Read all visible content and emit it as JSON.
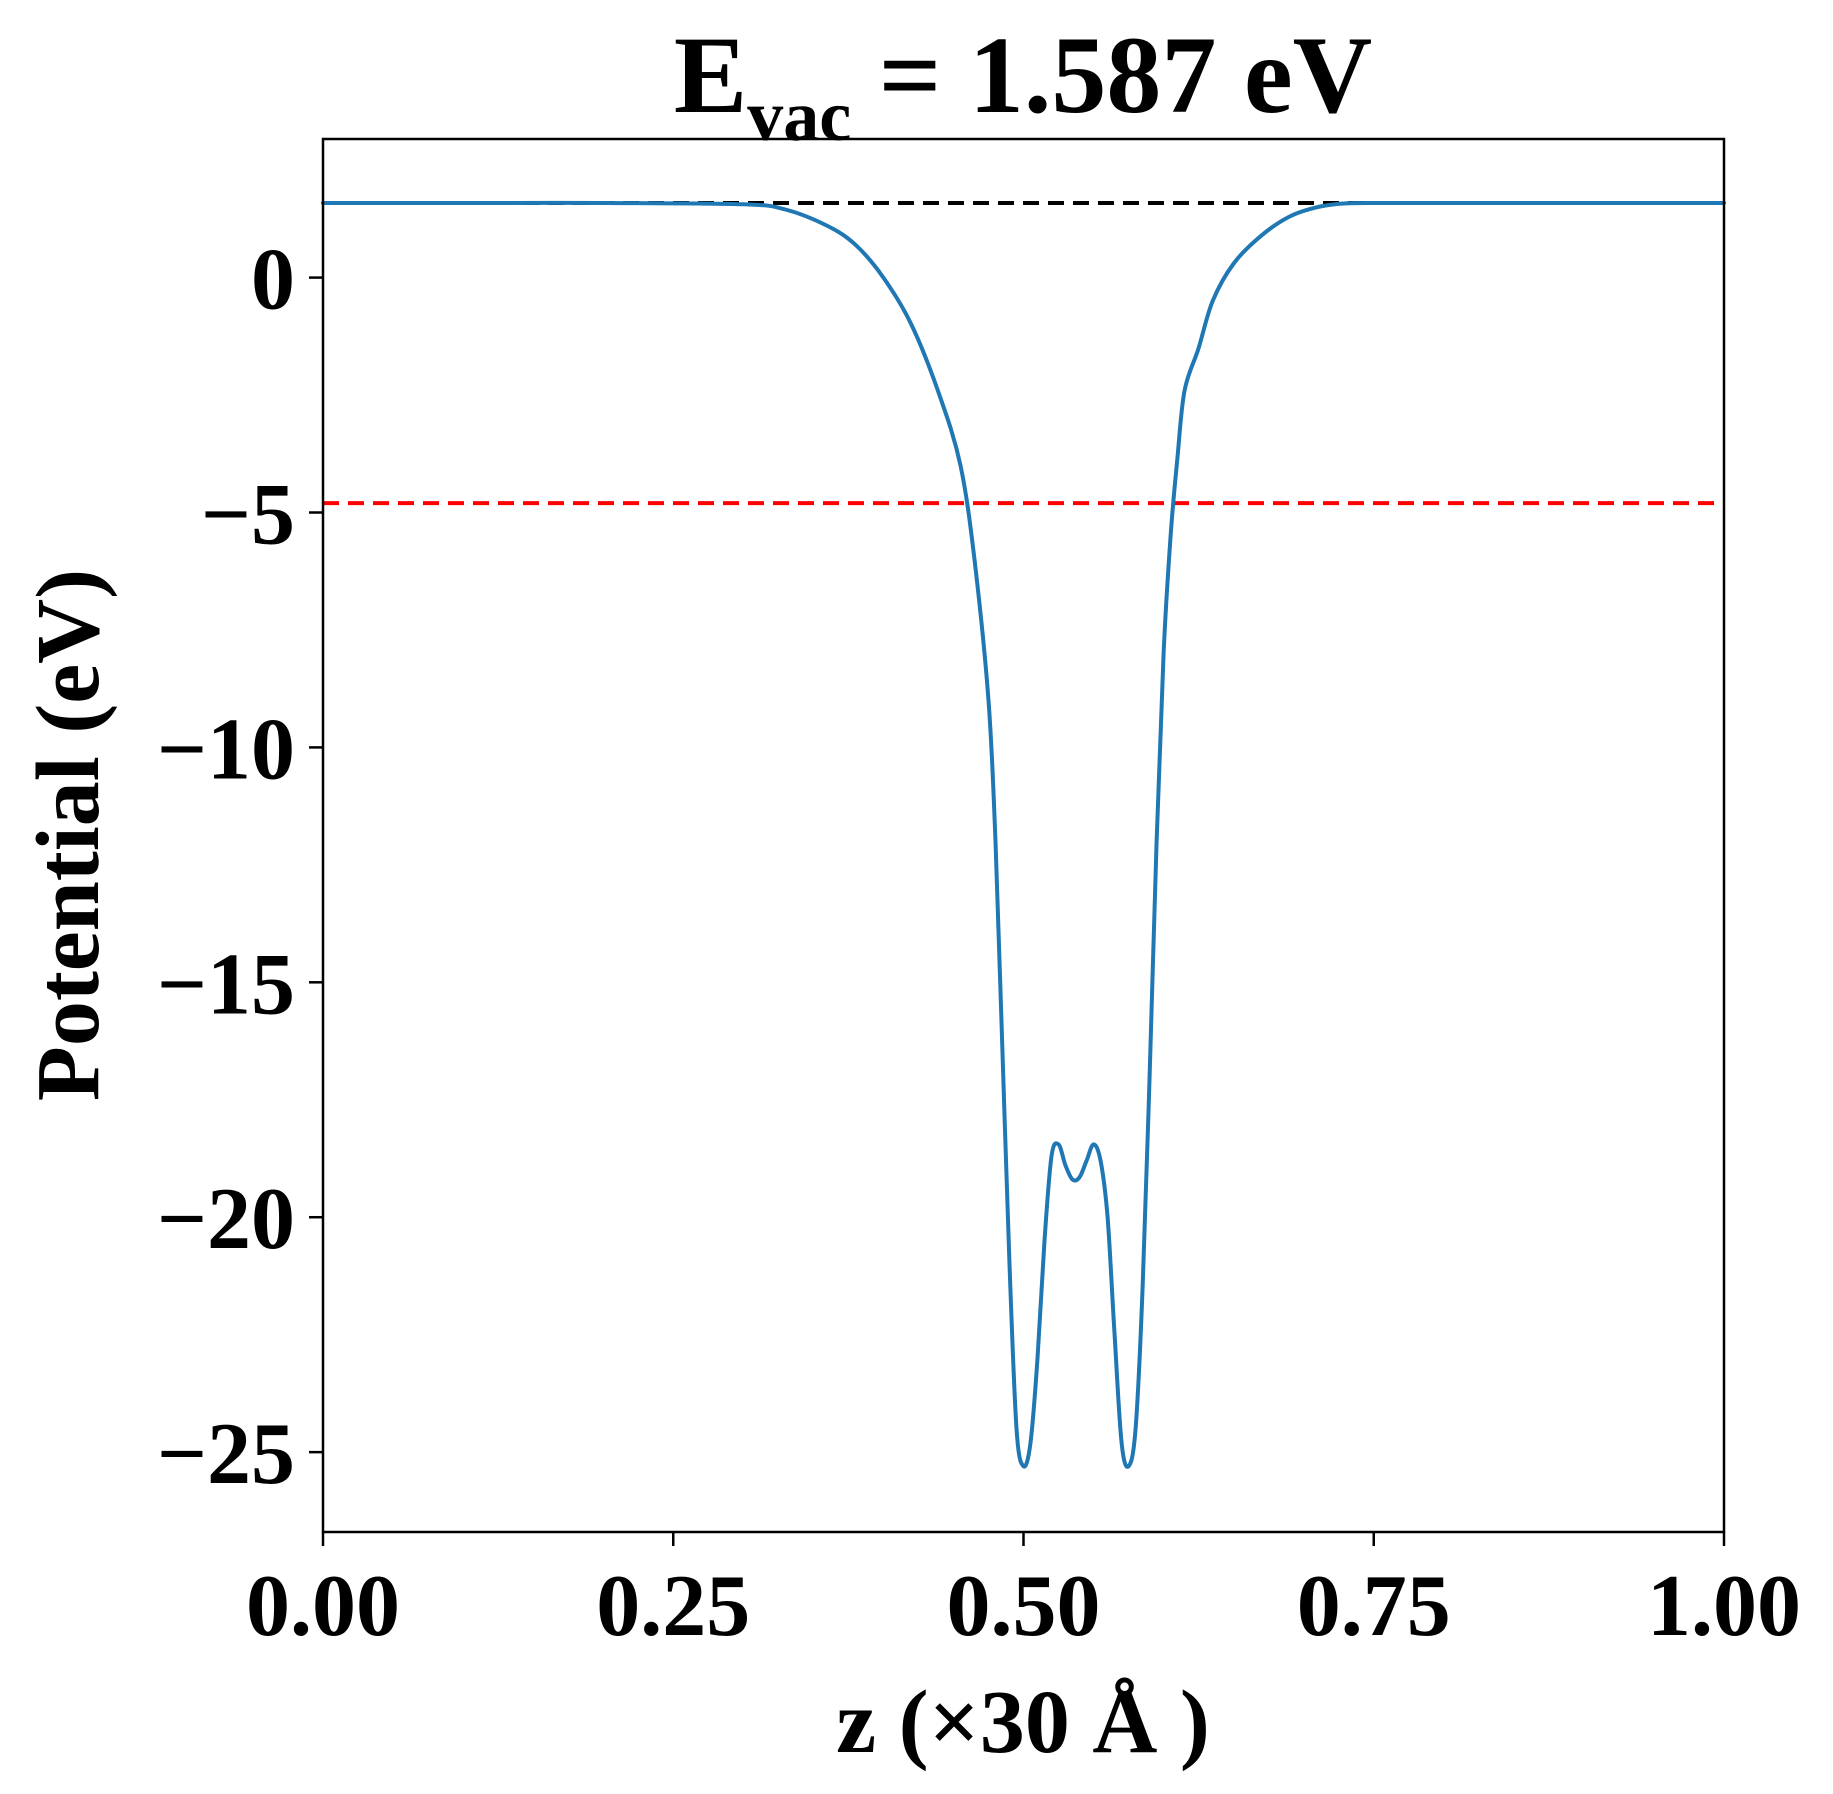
{
  "chart_data": {
    "type": "line",
    "title": {
      "main": "E",
      "subscript": "vac",
      "rest": " = 1.587 eV"
    },
    "xlabel": "z (×30 Å )",
    "ylabel": "Potential (eV)",
    "xlim": [
      0,
      1
    ],
    "ylim": [
      -26.7,
      2.95
    ],
    "xticks": [
      {
        "value": 0.0,
        "label": "0.00"
      },
      {
        "value": 0.25,
        "label": "0.25"
      },
      {
        "value": 0.5,
        "label": "0.50"
      },
      {
        "value": 0.75,
        "label": "0.75"
      },
      {
        "value": 1.0,
        "label": "1.00"
      }
    ],
    "yticks": [
      {
        "value": 0,
        "label": "0"
      },
      {
        "value": -5,
        "label": "−5"
      },
      {
        "value": -10,
        "label": "−10"
      },
      {
        "value": -15,
        "label": "−15"
      },
      {
        "value": -20,
        "label": "−20"
      },
      {
        "value": -25,
        "label": "−25"
      }
    ],
    "grid": false,
    "reference_lines": [
      {
        "y": 1.587,
        "color": "#000000",
        "style": "dashed"
      },
      {
        "y": -4.8,
        "color": "#ff0000",
        "style": "dashed"
      }
    ],
    "series": [
      {
        "color": "#1f77b4",
        "x": [
          0.0,
          0.1,
          0.2,
          0.3,
          0.33,
          0.36,
          0.38,
          0.4,
          0.42,
          0.44,
          0.455,
          0.465,
          0.475,
          0.48,
          0.485,
          0.49,
          0.495,
          0.5,
          0.505,
          0.51,
          0.515,
          0.52,
          0.525,
          0.53,
          0.535,
          0.54,
          0.545,
          0.55,
          0.555,
          0.56,
          0.565,
          0.57,
          0.575,
          0.58,
          0.585,
          0.59,
          0.595,
          0.6,
          0.605,
          0.61,
          0.615,
          0.625,
          0.635,
          0.65,
          0.67,
          0.69,
          0.71,
          0.73,
          0.76,
          0.8,
          0.9,
          1.0
        ],
        "values": [
          1.587,
          1.587,
          1.587,
          1.56,
          1.45,
          1.1,
          0.7,
          0.0,
          -1.0,
          -2.5,
          -4.0,
          -6.0,
          -9.0,
          -12.0,
          -16.5,
          -21.0,
          -24.5,
          -25.3,
          -24.8,
          -23.0,
          -20.5,
          -18.7,
          -18.45,
          -18.9,
          -19.2,
          -19.15,
          -18.8,
          -18.45,
          -18.8,
          -20.0,
          -22.5,
          -24.8,
          -25.3,
          -24.5,
          -21.5,
          -17.0,
          -12.0,
          -8.0,
          -5.5,
          -3.8,
          -2.4,
          -1.5,
          -0.5,
          0.3,
          0.9,
          1.3,
          1.5,
          1.58,
          1.587,
          1.587,
          1.587,
          1.587
        ]
      }
    ]
  }
}
